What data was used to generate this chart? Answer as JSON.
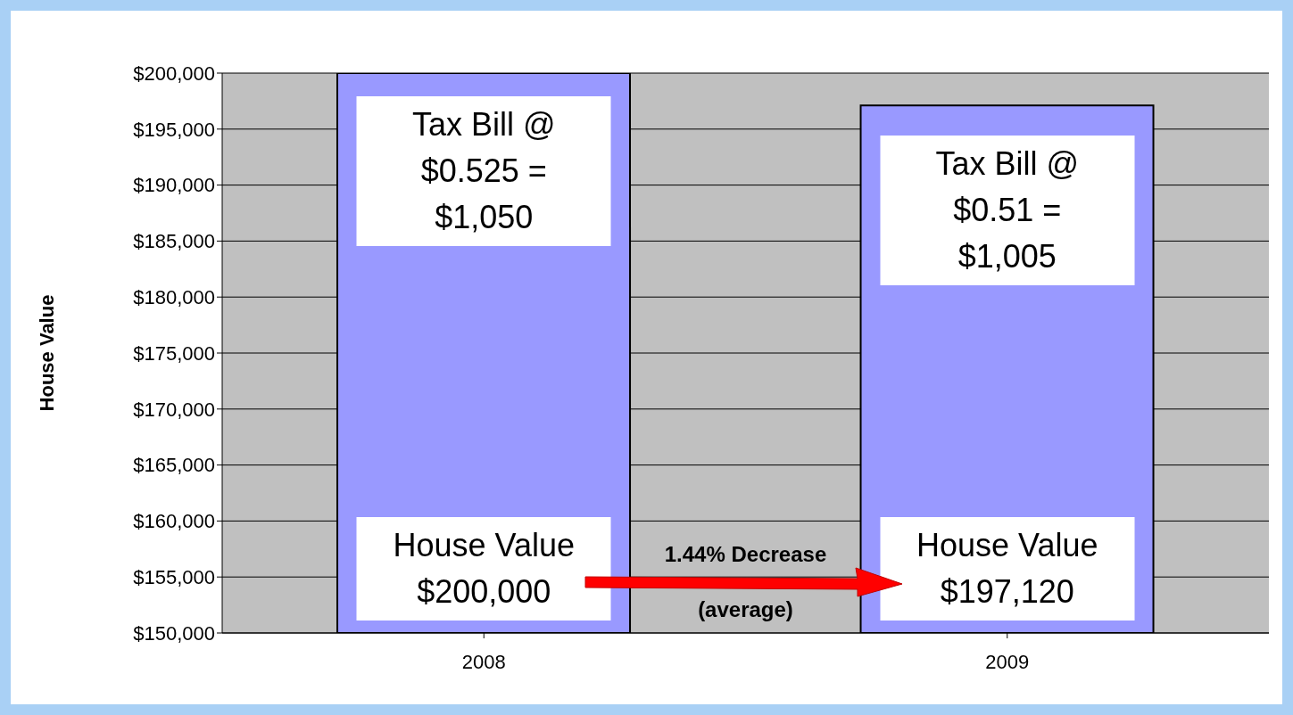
{
  "chart_data": {
    "type": "bar",
    "ylabel": "House Value",
    "categories": [
      "2008",
      "2009"
    ],
    "values": [
      200000,
      197120
    ],
    "color": "#9999ff",
    "ylim": [
      150000,
      200000
    ],
    "yticks": [
      {
        "value": 150000,
        "label": "$150,000"
      },
      {
        "value": 155000,
        "label": "$155,000"
      },
      {
        "value": 160000,
        "label": "$160,000"
      },
      {
        "value": 165000,
        "label": "$165,000"
      },
      {
        "value": 170000,
        "label": "$170,000"
      },
      {
        "value": 175000,
        "label": "$175,000"
      },
      {
        "value": 180000,
        "label": "$180,000"
      },
      {
        "value": 185000,
        "label": "$185,000"
      },
      {
        "value": 190000,
        "label": "$190,000"
      },
      {
        "value": 195000,
        "label": "$195,000"
      },
      {
        "value": 200000,
        "label": "$200,000"
      }
    ],
    "grid": "y",
    "legend": false,
    "annotations": [
      "Tax Bill @ $0.525 = $1,050",
      "Tax Bill @ $0.51 = $1,005",
      "House Value $200,000",
      "House Value $197,120",
      "1.44% Decrease (average)"
    ]
  }
}
